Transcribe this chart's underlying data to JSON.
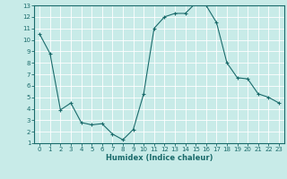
{
  "x": [
    0,
    1,
    2,
    3,
    4,
    5,
    6,
    7,
    8,
    9,
    10,
    11,
    12,
    13,
    14,
    15,
    16,
    17,
    18,
    19,
    20,
    21,
    22,
    23
  ],
  "y": [
    10.5,
    8.8,
    3.9,
    4.5,
    2.8,
    2.6,
    2.7,
    1.8,
    1.3,
    2.2,
    5.3,
    11.0,
    12.0,
    12.3,
    12.3,
    13.2,
    13.0,
    11.5,
    8.0,
    6.7,
    6.6,
    5.3,
    5.0,
    4.5
  ],
  "line_color": "#1a6b6b",
  "marker": "+",
  "marker_size": 3,
  "marker_lw": 0.8,
  "bg_color": "#c8ebe8",
  "grid_color": "#ffffff",
  "xlabel": "Humidex (Indice chaleur)",
  "xlim": [
    -0.5,
    23.5
  ],
  "ylim": [
    1,
    13
  ],
  "yticks": [
    1,
    2,
    3,
    4,
    5,
    6,
    7,
    8,
    9,
    10,
    11,
    12,
    13
  ],
  "xticks": [
    0,
    1,
    2,
    3,
    4,
    5,
    6,
    7,
    8,
    9,
    10,
    11,
    12,
    13,
    14,
    15,
    16,
    17,
    18,
    19,
    20,
    21,
    22,
    23
  ],
  "tick_color": "#1a6b6b",
  "label_color": "#1a6b6b",
  "axes_color": "#1a6b6b",
  "tick_fontsize": 5,
  "xlabel_fontsize": 6,
  "linewidth": 0.8
}
